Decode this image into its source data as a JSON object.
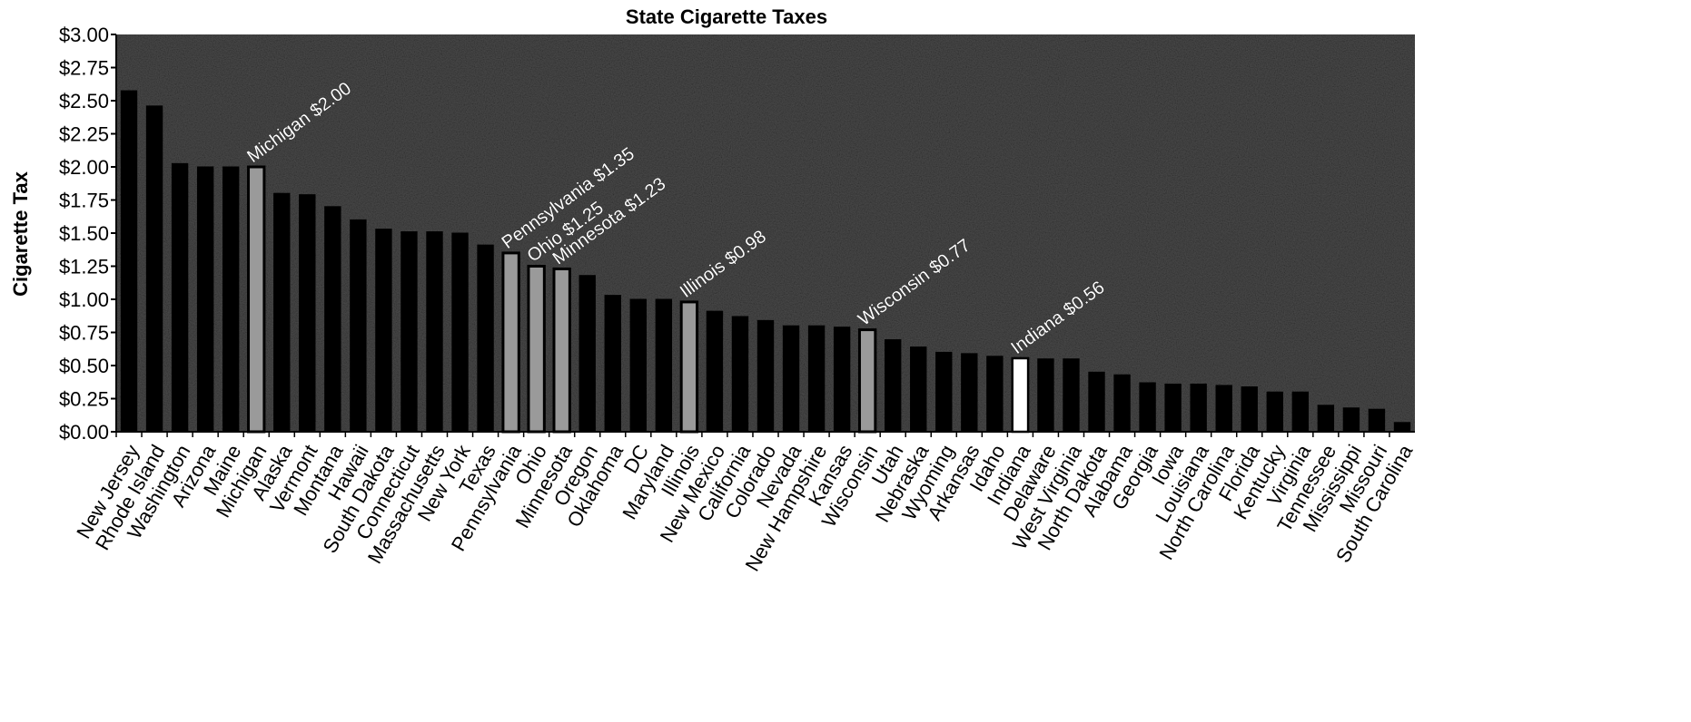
{
  "chart_data": {
    "type": "bar",
    "title": "State Cigarette Taxes",
    "xlabel": "",
    "ylabel": "Cigarette Tax",
    "ylim": [
      0,
      3.0
    ],
    "yticks": [
      "$0.00",
      "$0.25",
      "$0.50",
      "$0.75",
      "$1.00",
      "$1.25",
      "$1.50",
      "$1.75",
      "$2.00",
      "$2.25",
      "$2.50",
      "$2.75",
      "$3.00"
    ],
    "categories": [
      "New Jersey",
      "Rhode Island",
      "Washington",
      "Arizona",
      "Maine",
      "Michigan",
      "Alaska",
      "Vermont",
      "Montana",
      "Hawaii",
      "South Dakota",
      "Connecticut",
      "Massachusetts",
      "New York",
      "Texas",
      "Pennsylvania",
      "Ohio",
      "Minnesota",
      "Oregon",
      "Oklahoma",
      "DC",
      "Maryland",
      "Illinois",
      "New Mexico",
      "California",
      "Colorado",
      "Nevada",
      "New Hampshire",
      "Kansas",
      "Wisconsin",
      "Utah",
      "Nebraska",
      "Wyoming",
      "Arkansas",
      "Idaho",
      "Indiana",
      "Delaware",
      "West Virginia",
      "North Dakota",
      "Alabama",
      "Georgia",
      "Iowa",
      "Louisiana",
      "North Carolina",
      "Florida",
      "Kentucky",
      "Virginia",
      "Tennessee",
      "Mississippi",
      "Missouri",
      "South Carolina"
    ],
    "values": [
      2.575,
      2.46,
      2.025,
      2.0,
      2.0,
      2.0,
      1.8,
      1.79,
      1.7,
      1.6,
      1.53,
      1.51,
      1.51,
      1.5,
      1.41,
      1.35,
      1.25,
      1.23,
      1.18,
      1.03,
      1.0,
      1.0,
      0.98,
      0.91,
      0.87,
      0.84,
      0.8,
      0.8,
      0.79,
      0.77,
      0.695,
      0.64,
      0.6,
      0.59,
      0.57,
      0.555,
      0.55,
      0.55,
      0.45,
      0.43,
      0.37,
      0.36,
      0.36,
      0.35,
      0.339,
      0.3,
      0.3,
      0.2,
      0.18,
      0.17,
      0.07
    ],
    "bar_styles": [
      "solid",
      "solid",
      "solid",
      "solid",
      "solid",
      "hollow",
      "solid",
      "solid",
      "solid",
      "solid",
      "solid",
      "solid",
      "solid",
      "solid",
      "solid",
      "hollow",
      "hollow",
      "hollow",
      "solid",
      "solid",
      "solid",
      "solid",
      "hollow",
      "solid",
      "solid",
      "solid",
      "solid",
      "solid",
      "solid",
      "hollow",
      "solid",
      "solid",
      "solid",
      "solid",
      "solid",
      "white",
      "solid",
      "solid",
      "solid",
      "solid",
      "solid",
      "solid",
      "solid",
      "solid",
      "solid",
      "solid",
      "solid",
      "solid",
      "solid",
      "solid",
      "solid"
    ],
    "annotations": [
      {
        "category": "Michigan",
        "text": "Michigan $2.00"
      },
      {
        "category": "Pennsylvania",
        "text": "Pennsylvania $1.35"
      },
      {
        "category": "Ohio",
        "text": "Ohio $1.25"
      },
      {
        "category": "Minnesota",
        "text": "Minnesota $1.23"
      },
      {
        "category": "Illinois",
        "text": "Illinois $0.98"
      },
      {
        "category": "Wisconsin",
        "text": "Wisconsin $0.77"
      },
      {
        "category": "Indiana",
        "text": "Indiana $0.56"
      }
    ],
    "grid": false,
    "plot_background": "#4a4a4a",
    "bar_color": "#000000",
    "hollow_color": "#9a9a9a",
    "highlight_color": "#ffffff"
  }
}
